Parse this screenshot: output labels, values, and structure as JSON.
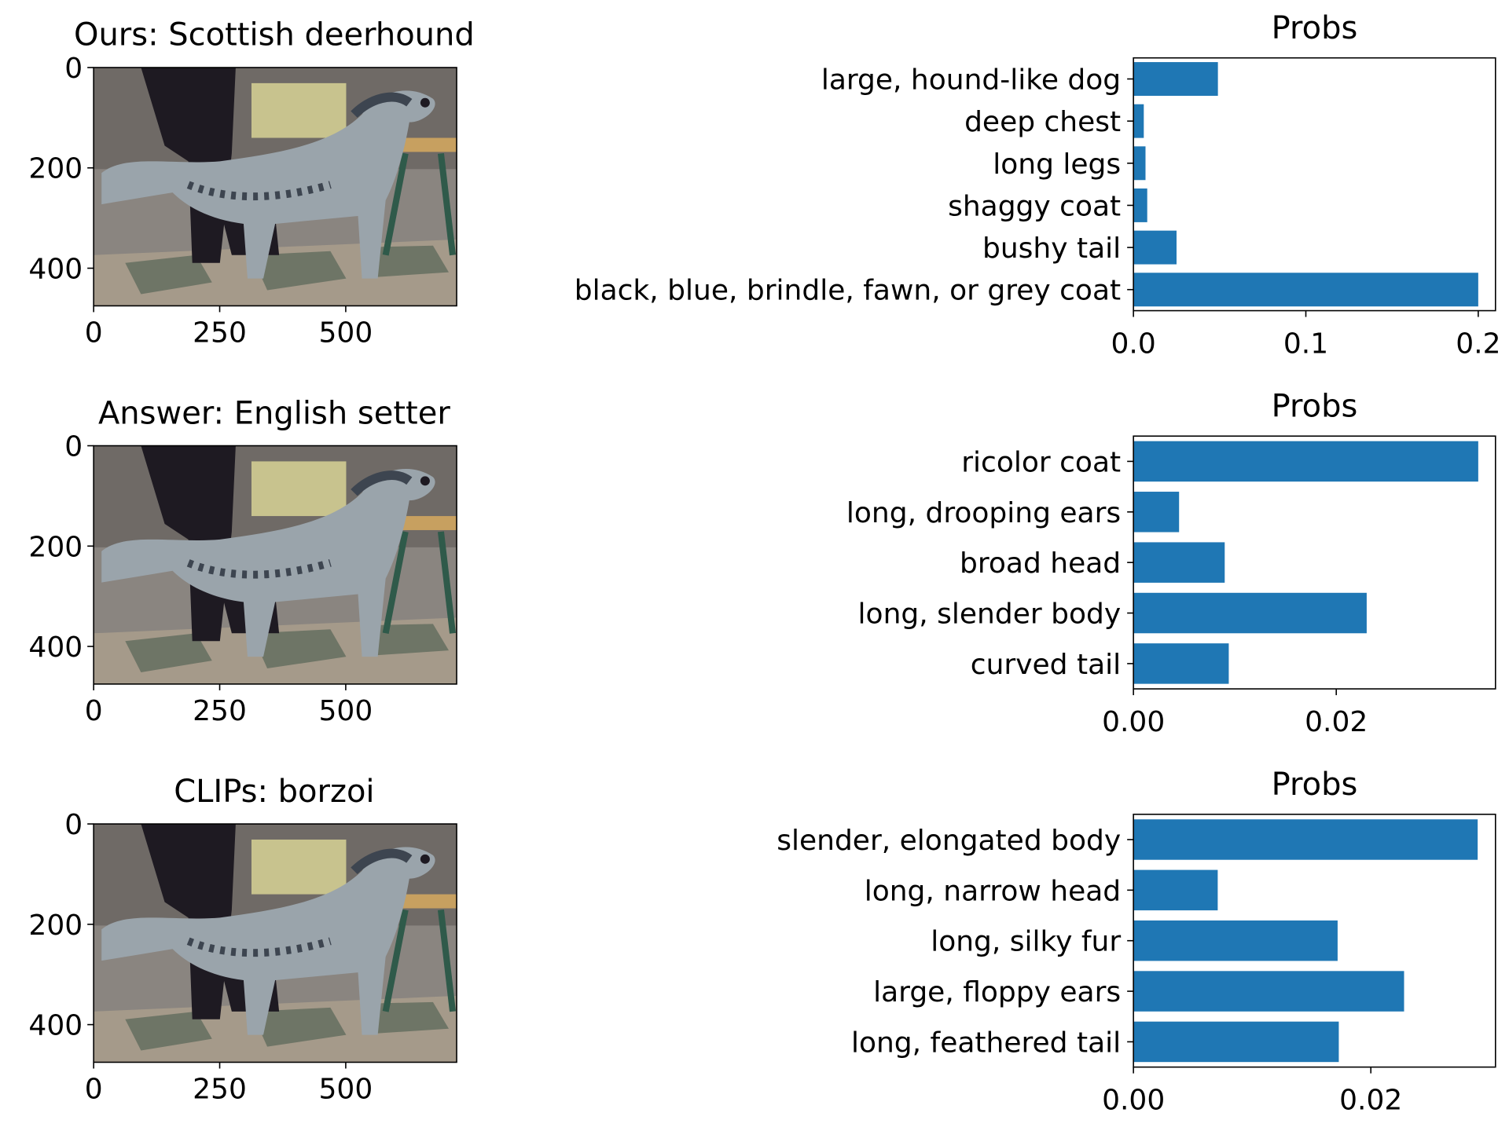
{
  "colors": {
    "bar": "#1f77b4",
    "axis": "#000000",
    "photo_bg": "#8a8580",
    "photo_floor": "#a59a8a",
    "photo_floor_dark": "#6e7566",
    "photo_dog": "#9aa4ab",
    "photo_dog_dark": "#3d4550",
    "photo_person": "#1e1a22",
    "photo_chair": "#2f5a4a",
    "photo_cushion": "#c8c38e"
  },
  "photo": {
    "description_icon": "photo-of-english-setter-dog",
    "x_ticks": [
      0,
      250,
      500
    ],
    "y_ticks": [
      0,
      200,
      400
    ],
    "width_units": 720,
    "height_units": 475
  },
  "chart_data": [
    {
      "type": "bar",
      "orientation": "horizontal",
      "image_title": "Ours: Scottish deerhound",
      "title": "Probs",
      "categories": [
        "large, hound-like dog",
        "deep chest",
        "long legs",
        "shaggy coat",
        "bushy tail",
        "black, blue, brindle, fawn, or grey coat"
      ],
      "values": [
        0.049,
        0.006,
        0.007,
        0.008,
        0.025,
        0.2
      ],
      "xlim": [
        0,
        0.21
      ],
      "xticks": [
        0.0,
        0.1,
        0.2
      ],
      "xtick_labels": [
        "0.0",
        "0.1",
        "0.2"
      ],
      "grid": false
    },
    {
      "type": "bar",
      "orientation": "horizontal",
      "image_title": "Answer: English setter",
      "title": "Probs",
      "categories": [
        "ricolor coat",
        "long, drooping ears",
        "broad head",
        "long, slender body",
        "curved tail"
      ],
      "values": [
        0.034,
        0.0045,
        0.009,
        0.023,
        0.0094
      ],
      "xlim": [
        0,
        0.0357
      ],
      "xticks": [
        0.0,
        0.02
      ],
      "xtick_labels": [
        "0.00",
        "0.02"
      ],
      "grid": false
    },
    {
      "type": "bar",
      "orientation": "horizontal",
      "image_title": "CLIPs: borzoi",
      "title": "Probs",
      "categories": [
        "slender, elongated body",
        "long, narrow head",
        "long, silky fur",
        "large, floppy ears",
        "long, feathered tail"
      ],
      "values": [
        0.029,
        0.0071,
        0.0172,
        0.0228,
        0.0173
      ],
      "xlim": [
        0,
        0.0305
      ],
      "xticks": [
        0.0,
        0.02
      ],
      "xtick_labels": [
        "0.00",
        "0.02"
      ],
      "grid": false
    }
  ]
}
